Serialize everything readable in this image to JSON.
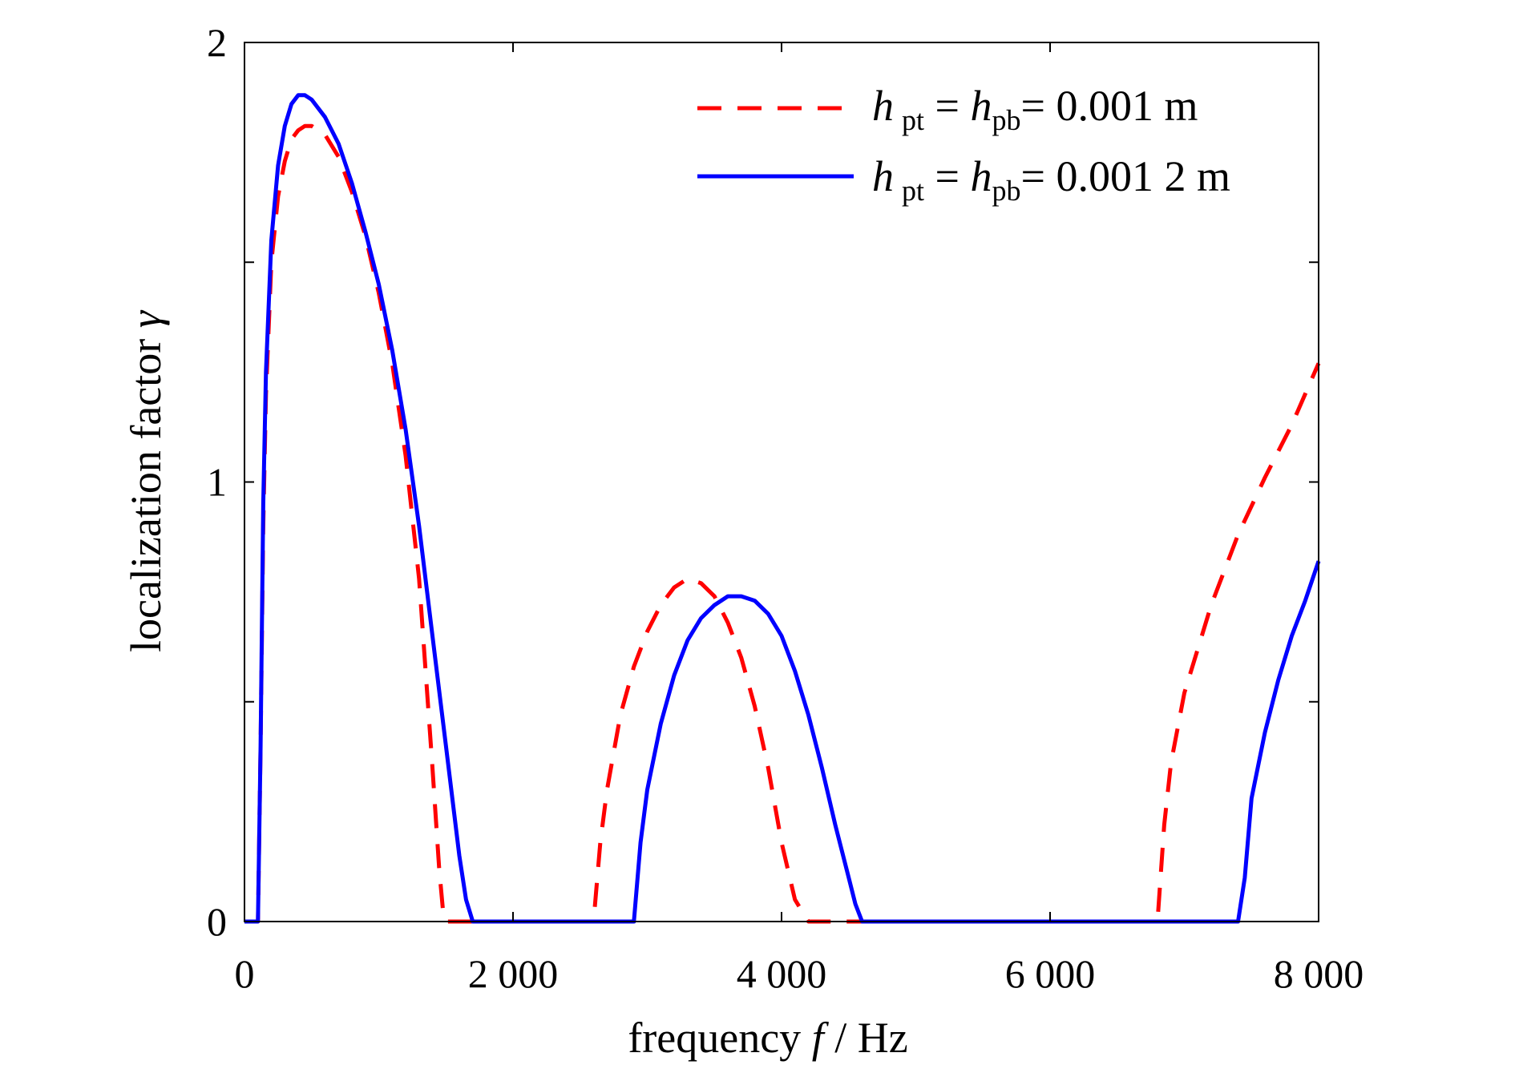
{
  "chart_data": {
    "type": "line",
    "xlabel": {
      "text": "frequency ",
      "var": "f",
      "unit": " / Hz"
    },
    "ylabel": {
      "text": "localization factor ",
      "var": "γ"
    },
    "xlim": [
      0,
      8000
    ],
    "ylim": [
      0,
      2
    ],
    "x_ticks": [
      0,
      2000,
      4000,
      6000,
      8000
    ],
    "x_tick_labels": [
      "0",
      "2 000",
      "4 000",
      "6 000",
      "8 000"
    ],
    "y_ticks": [
      0,
      0.5,
      1,
      1.5,
      2
    ],
    "y_tick_labels": [
      "0",
      "",
      "1",
      "",
      "2"
    ],
    "grid": false,
    "legend_position": "top-right",
    "series": [
      {
        "name": "h_pt = h_pb = 0.001 m",
        "legend": {
          "h": "h",
          "sub1": "pt",
          "eq": " = ",
          "sub2": "pb",
          "value": "= 0.001 m"
        },
        "color": "#ff0000",
        "style": "dashed",
        "x": [
          0,
          100,
          120,
          140,
          160,
          200,
          250,
          300,
          350,
          400,
          450,
          500,
          600,
          700,
          800,
          900,
          1000,
          1100,
          1200,
          1300,
          1400,
          1450,
          1480,
          1500,
          1600,
          1800,
          2000,
          2200,
          2400,
          2600,
          2650,
          2700,
          2800,
          2900,
          3000,
          3100,
          3200,
          3300,
          3400,
          3500,
          3600,
          3700,
          3800,
          3900,
          4000,
          4100,
          4200,
          4250,
          4300,
          4400,
          4600,
          5000,
          5500,
          6000,
          6500,
          6800,
          6850,
          6900,
          7000,
          7200,
          7400,
          7600,
          7800,
          8000
        ],
        "y": [
          0,
          0,
          0.4,
          0.9,
          1.2,
          1.5,
          1.65,
          1.73,
          1.78,
          1.8,
          1.81,
          1.81,
          1.79,
          1.74,
          1.66,
          1.56,
          1.43,
          1.27,
          1.06,
          0.78,
          0.35,
          0.12,
          0.02,
          0,
          0,
          0,
          0,
          0,
          0,
          0,
          0.18,
          0.3,
          0.47,
          0.58,
          0.66,
          0.72,
          0.76,
          0.78,
          0.77,
          0.74,
          0.68,
          0.6,
          0.49,
          0.35,
          0.18,
          0.05,
          0,
          0,
          0,
          0,
          0,
          0,
          0,
          0,
          0,
          0,
          0.22,
          0.36,
          0.52,
          0.72,
          0.88,
          1.01,
          1.13,
          1.27
        ]
      },
      {
        "name": "h_pt = h_pb = 0.0012 m",
        "legend": {
          "h": "h",
          "sub1": "pt",
          "eq": " = ",
          "sub2": "pb",
          "value": "= 0.001 2 m"
        },
        "color": "#0000ff",
        "style": "solid",
        "x": [
          0,
          100,
          120,
          140,
          160,
          200,
          250,
          300,
          350,
          400,
          450,
          500,
          600,
          700,
          800,
          900,
          1000,
          1100,
          1200,
          1300,
          1400,
          1500,
          1600,
          1650,
          1690,
          1700,
          2000,
          2500,
          2900,
          2950,
          3000,
          3100,
          3200,
          3300,
          3400,
          3500,
          3600,
          3700,
          3800,
          3900,
          4000,
          4100,
          4200,
          4300,
          4400,
          4500,
          4550,
          4600,
          4700,
          5000,
          6000,
          7000,
          7400,
          7450,
          7500,
          7600,
          7700,
          7800,
          7900,
          8000
        ],
        "y": [
          0,
          0,
          0.4,
          0.95,
          1.25,
          1.55,
          1.72,
          1.81,
          1.86,
          1.88,
          1.88,
          1.87,
          1.83,
          1.77,
          1.68,
          1.57,
          1.45,
          1.3,
          1.12,
          0.9,
          0.65,
          0.4,
          0.15,
          0.05,
          0.01,
          0,
          0,
          0,
          0,
          0.18,
          0.3,
          0.45,
          0.56,
          0.64,
          0.69,
          0.72,
          0.74,
          0.74,
          0.73,
          0.7,
          0.65,
          0.57,
          0.47,
          0.35,
          0.22,
          0.1,
          0.04,
          0,
          0,
          0,
          0,
          0,
          0,
          0.1,
          0.28,
          0.43,
          0.55,
          0.65,
          0.73,
          0.82
        ]
      }
    ]
  }
}
